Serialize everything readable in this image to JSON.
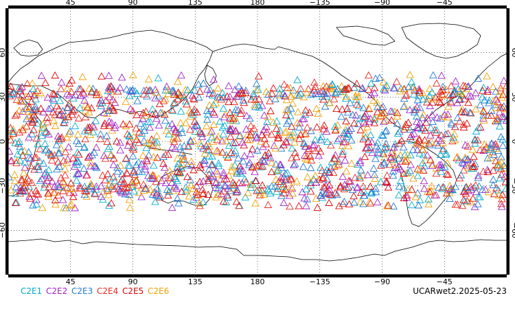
{
  "map": {
    "projection": "equirectangular",
    "center_longitude": 180,
    "lon_range": [
      0,
      360
    ],
    "lat_range": [
      -90,
      90
    ],
    "gridlines": true,
    "grid_style": "dotted",
    "lon_ticks": [
      {
        "lon": 45,
        "label": "45"
      },
      {
        "lon": 90,
        "label": "90"
      },
      {
        "lon": 135,
        "label": "135"
      },
      {
        "lon": 180,
        "label": "180"
      },
      {
        "lon": 225,
        "label": "−135"
      },
      {
        "lon": 270,
        "label": "−90"
      },
      {
        "lon": 315,
        "label": "−45"
      }
    ],
    "lat_ticks": [
      {
        "lat": 60,
        "label": "60"
      },
      {
        "lat": 30,
        "label": "30"
      },
      {
        "lat": 0,
        "label": "0"
      },
      {
        "lat": -30,
        "label": "−30"
      },
      {
        "lat": -60,
        "label": "−60"
      }
    ],
    "coastline_color": "#000000",
    "marker_shape": "open triangle",
    "occultation_lat_band": [
      -45,
      45
    ],
    "estimated_point_count": 1800
  },
  "legend": {
    "items": [
      {
        "label": "C2E1",
        "color": "#00aacc"
      },
      {
        "label": "C2E2",
        "color": "#a020c8"
      },
      {
        "label": "C2E3",
        "color": "#1e78d2"
      },
      {
        "label": "C2E4",
        "color": "#e6281e"
      },
      {
        "label": "C2E5",
        "color": "#dc0000"
      },
      {
        "label": "C2E6",
        "color": "#f0a000"
      }
    ]
  },
  "footer": {
    "product_label": "UCARwet2.2025-05-23"
  }
}
